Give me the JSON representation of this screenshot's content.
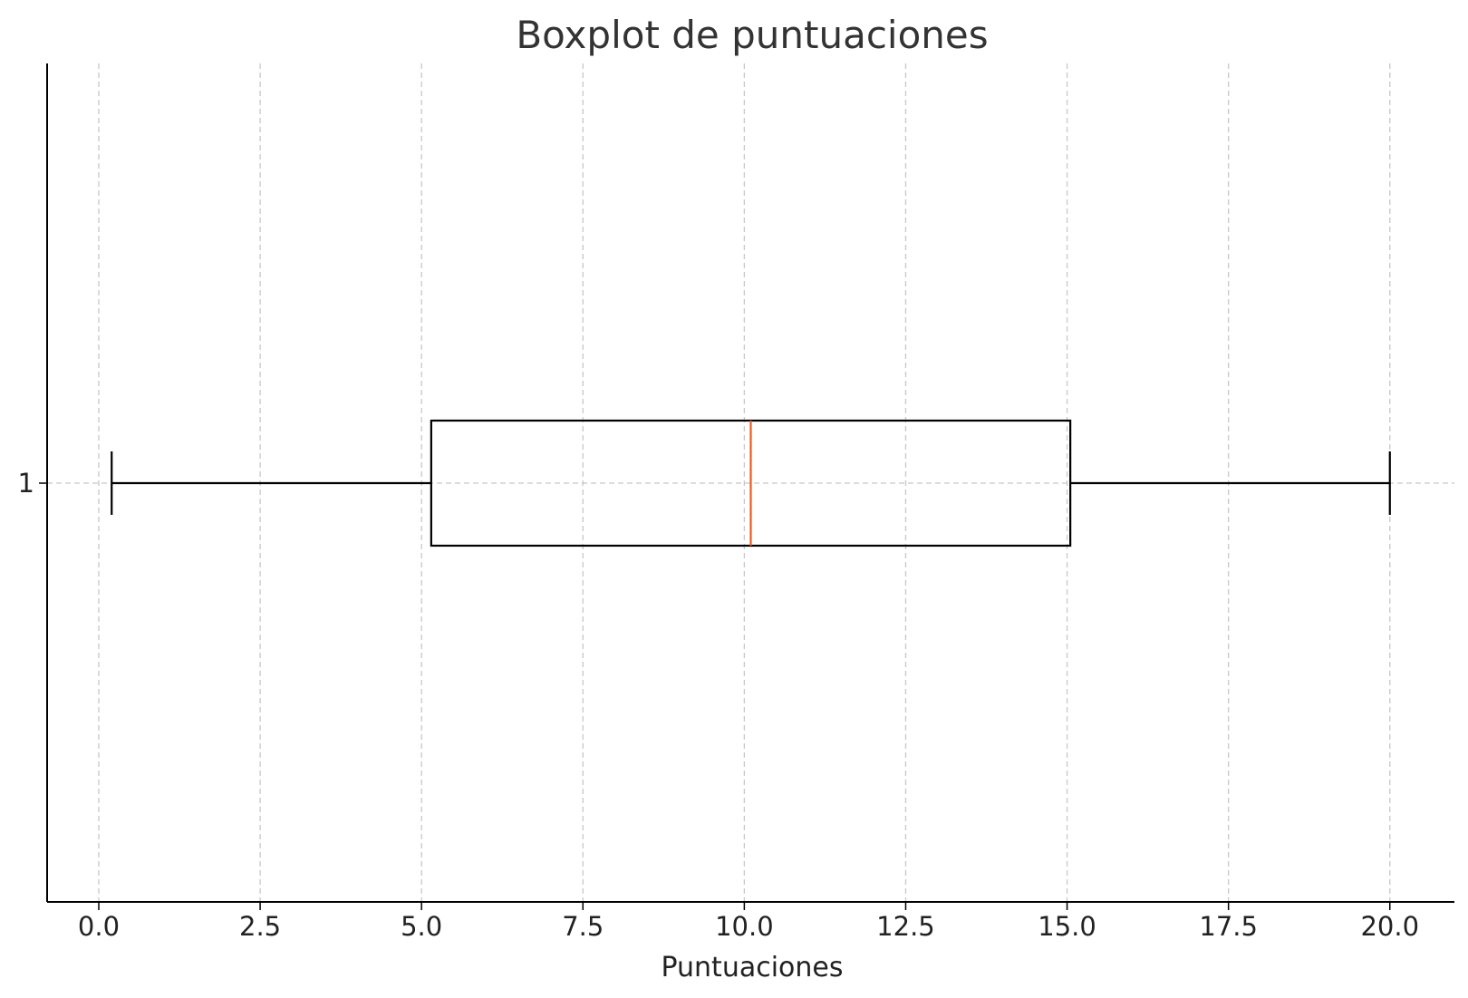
{
  "chart_data": {
    "type": "boxplot",
    "orientation": "horizontal",
    "title": "Boxplot de puntuaciones",
    "xlabel": "Puntuaciones",
    "ylabel": "",
    "xlim": [
      -0.8,
      21.0
    ],
    "x_ticks": [
      "0.0",
      "2.5",
      "5.0",
      "7.5",
      "10.0",
      "12.5",
      "15.0",
      "17.5",
      "20.0"
    ],
    "y_ticks": [
      "1"
    ],
    "grid": true,
    "boxes": [
      {
        "label": "1",
        "whisker_low": 0.2,
        "q1": 5.15,
        "median": 10.1,
        "q3": 15.05,
        "whisker_high": 20.0
      }
    ],
    "colors": {
      "box": "#000000",
      "median": "#f05a22",
      "grid": "#c8c8c8"
    }
  }
}
